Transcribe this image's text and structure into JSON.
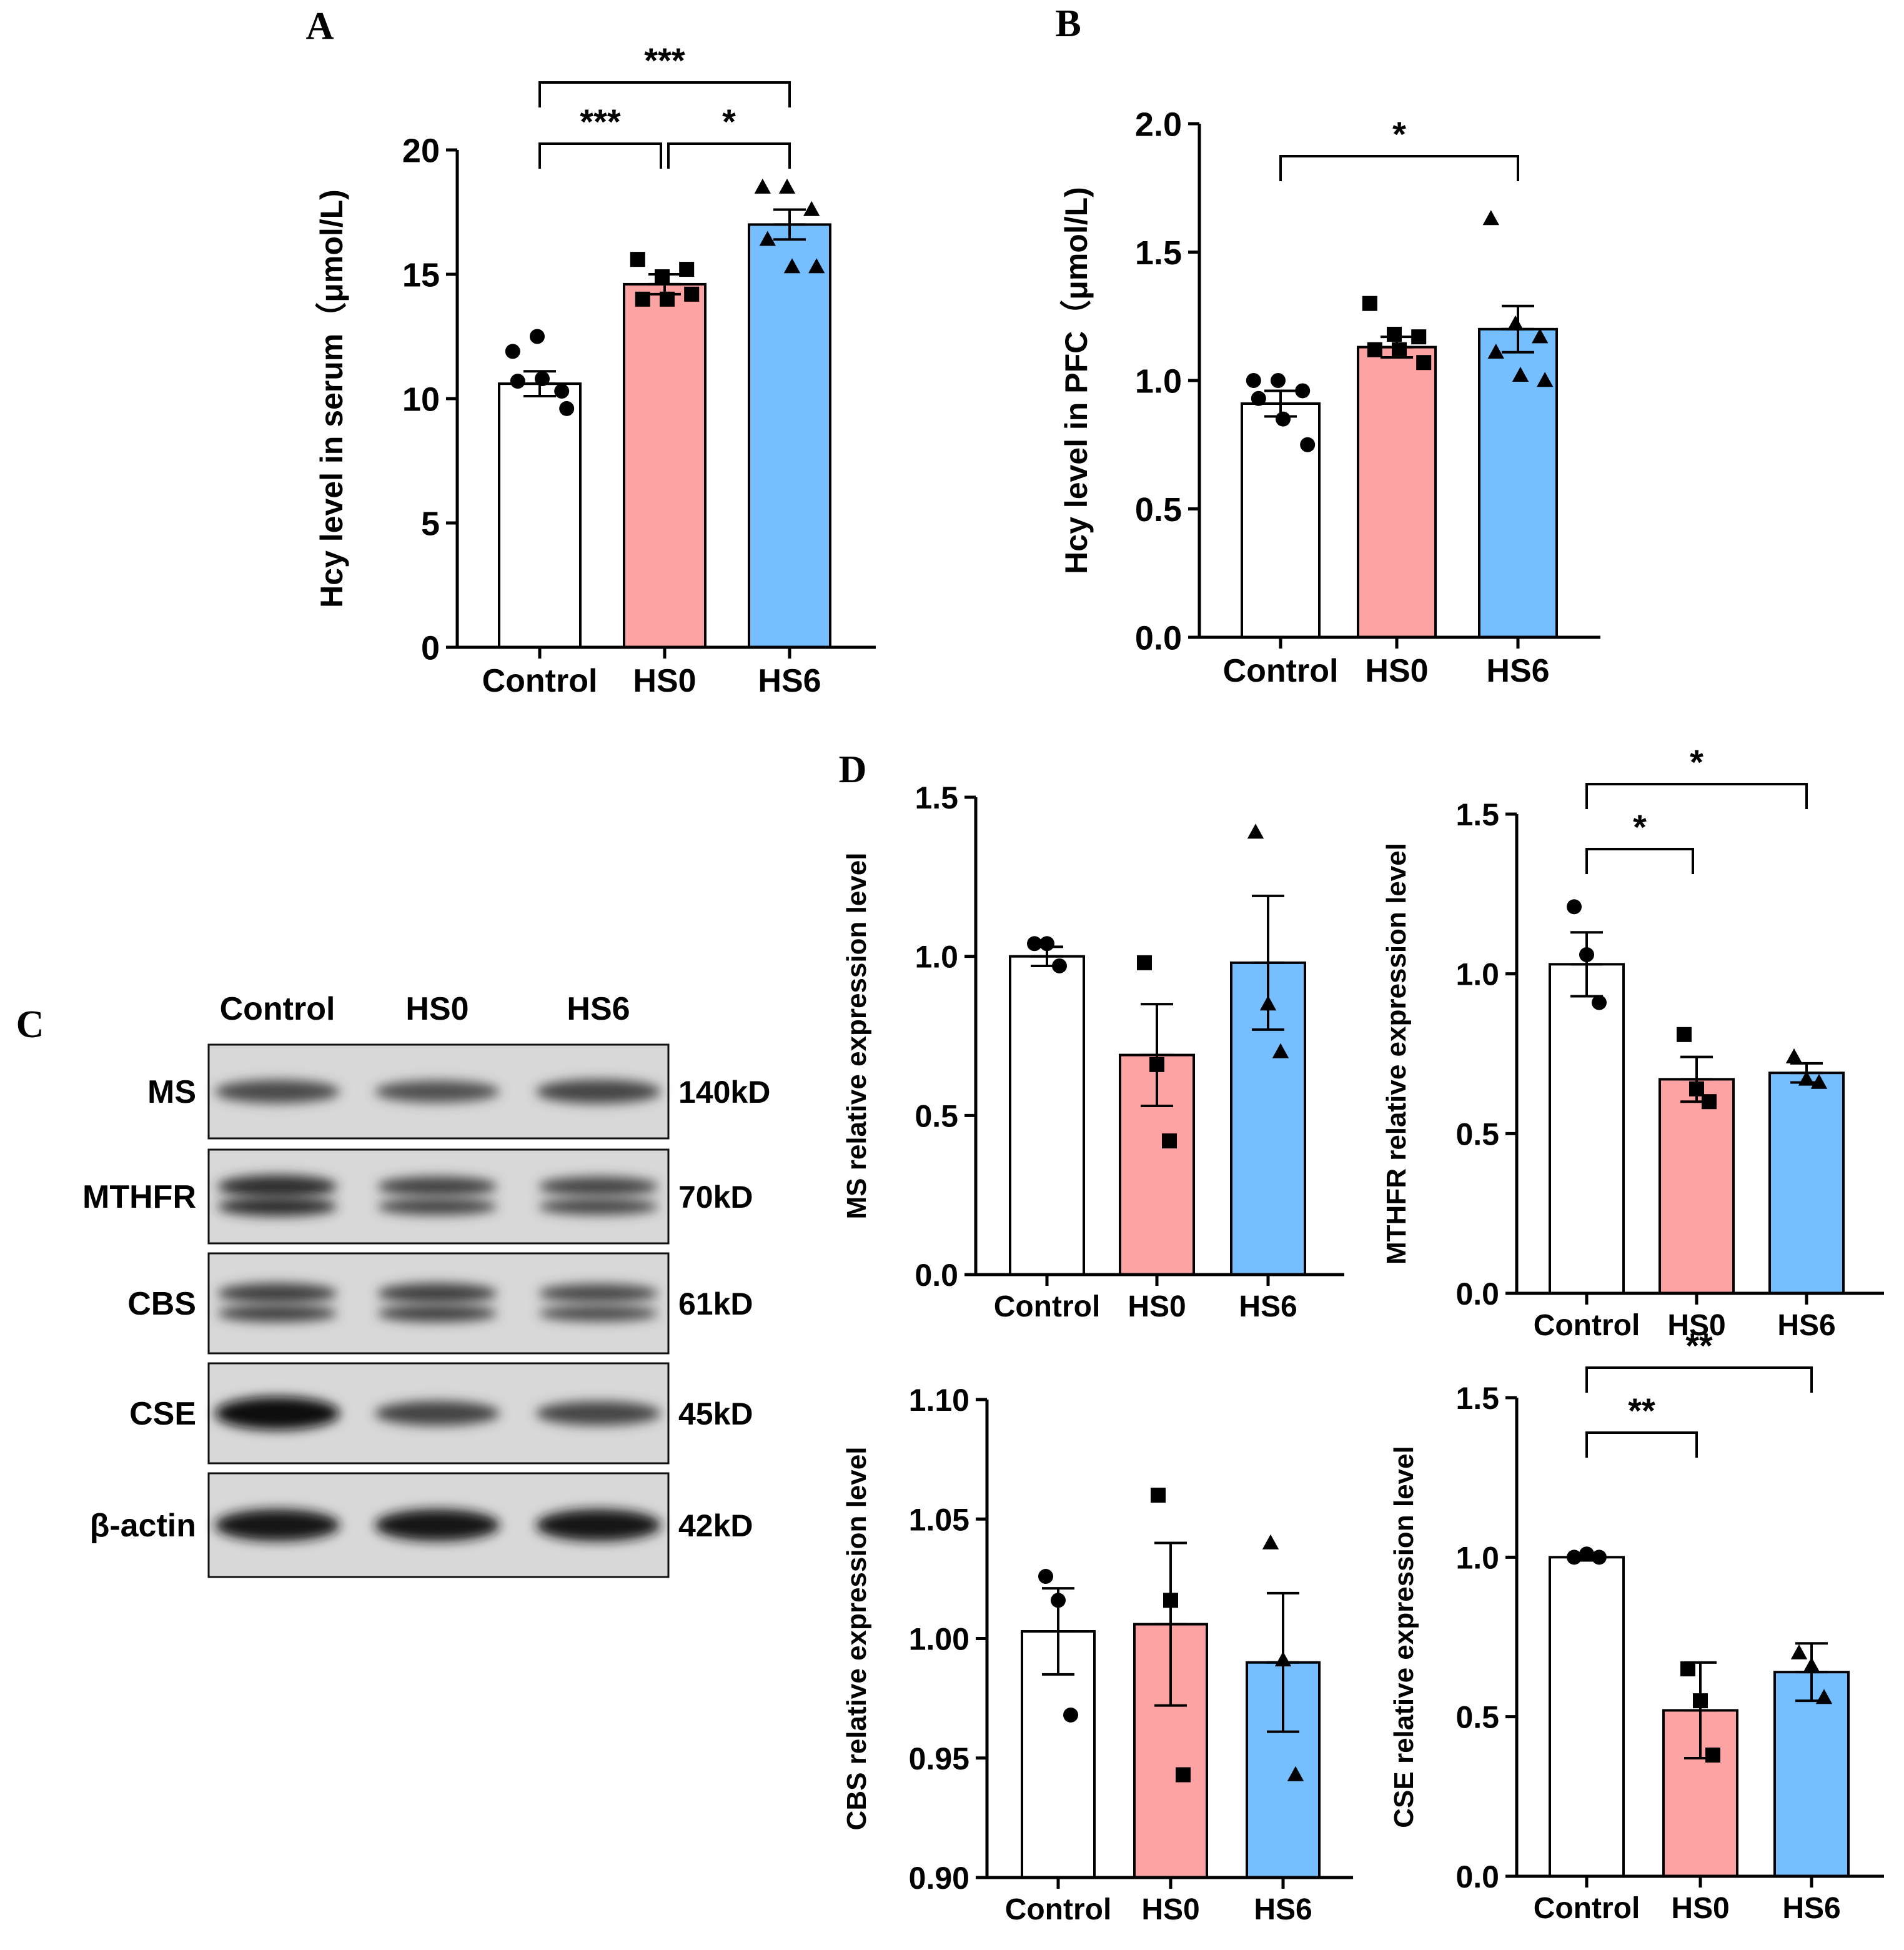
{
  "colors": {
    "control": "#ffffff",
    "hs0": "#fea3a3",
    "hs6": "#75beff",
    "ink": "#000000"
  },
  "panels": {
    "A": "A",
    "B": "B",
    "C": "C",
    "D": "D"
  },
  "blot": {
    "lanes": [
      "Control",
      "HS0",
      "HS6"
    ],
    "rows": [
      {
        "protein": "MS",
        "size": "140kD",
        "intensity": [
          0.55,
          0.5,
          0.58
        ],
        "double": false
      },
      {
        "protein": "MTHFR",
        "size": "70kD",
        "intensity": [
          0.75,
          0.6,
          0.58
        ],
        "double": true
      },
      {
        "protein": "CBS",
        "size": "61kD",
        "intensity": [
          0.62,
          0.62,
          0.55
        ],
        "double": true
      },
      {
        "protein": "CSE",
        "size": "45kD",
        "intensity": [
          0.95,
          0.6,
          0.58
        ],
        "double": false
      },
      {
        "protein": "β-actin",
        "size": "42kD",
        "intensity": [
          0.9,
          0.9,
          0.9
        ],
        "double": false
      }
    ]
  },
  "chart_data": [
    {
      "id": "A",
      "type": "bar",
      "categories": [
        "Control",
        "HS0",
        "HS6"
      ],
      "values": [
        10.6,
        14.6,
        17.0
      ],
      "errors": [
        0.5,
        0.4,
        0.6
      ],
      "points": [
        [
          11.9,
          12.5,
          10.3,
          10.7,
          10.8,
          9.6
        ],
        [
          15.6,
          14.9,
          15.2,
          14.0,
          14.0,
          14.2
        ],
        [
          18.5,
          18.5,
          17.6,
          16.4,
          15.3,
          15.3
        ]
      ],
      "ylabel": "Hcy level in serum（μmol/L)",
      "ylim": [
        0,
        20
      ],
      "yticks": [
        "0",
        "5",
        "10",
        "15",
        "20"
      ],
      "brackets": [
        {
          "from": 0,
          "to": 2,
          "label": "***",
          "level": 2
        },
        {
          "from": 0,
          "to": 1,
          "label": "***",
          "level": 1
        },
        {
          "from": 1,
          "to": 2,
          "label": "*",
          "level": 1
        }
      ]
    },
    {
      "id": "B",
      "type": "bar",
      "categories": [
        "Control",
        "HS0",
        "HS6"
      ],
      "values": [
        0.91,
        1.13,
        1.2
      ],
      "errors": [
        0.05,
        0.04,
        0.09
      ],
      "points": [
        [
          1.0,
          1.0,
          0.96,
          0.93,
          0.85,
          0.75
        ],
        [
          1.3,
          1.18,
          1.17,
          1.12,
          1.12,
          1.07
        ],
        [
          1.63,
          1.22,
          1.17,
          1.11,
          1.02,
          1.0
        ]
      ],
      "ylabel": "Hcy level in PFC（μmol/L)",
      "ylim": [
        0,
        2.0
      ],
      "yticks": [
        "0.0",
        "0.5",
        "1.0",
        "1.5",
        "2.0"
      ],
      "brackets": [
        {
          "from": 0,
          "to": 2,
          "label": "*",
          "level": 1
        }
      ]
    },
    {
      "id": "D-MS",
      "type": "bar",
      "categories": [
        "Control",
        "HS0",
        "HS6"
      ],
      "values": [
        1.0,
        0.69,
        0.98
      ],
      "errors": [
        0.03,
        0.16,
        0.21
      ],
      "points": [
        [
          1.04,
          1.04,
          0.97
        ],
        [
          0.98,
          0.66,
          0.42
        ],
        [
          1.39,
          0.85,
          0.7
        ]
      ],
      "ylabel": "MS relative expression level",
      "ylim": [
        0,
        1.5
      ],
      "yticks": [
        "0.0",
        "0.5",
        "1.0",
        "1.5"
      ],
      "brackets": []
    },
    {
      "id": "D-MTHFR",
      "type": "bar",
      "categories": [
        "Control",
        "HS0",
        "HS6"
      ],
      "values": [
        1.03,
        0.67,
        0.69
      ],
      "errors": [
        0.1,
        0.07,
        0.03
      ],
      "points": [
        [
          1.21,
          1.06,
          0.91
        ],
        [
          0.81,
          0.64,
          0.6
        ],
        [
          0.74,
          0.67,
          0.66
        ]
      ],
      "ylabel": "MTHFR relative expression level",
      "ylim": [
        0,
        1.5
      ],
      "yticks": [
        "0.0",
        "0.5",
        "1.0",
        "1.5"
      ],
      "brackets": [
        {
          "from": 0,
          "to": 2,
          "label": "*",
          "level": 2
        },
        {
          "from": 0,
          "to": 1,
          "label": "*",
          "level": 1
        }
      ]
    },
    {
      "id": "D-CBS",
      "type": "bar",
      "categories": [
        "Control",
        "HS0",
        "HS6"
      ],
      "values": [
        1.003,
        1.006,
        0.99
      ],
      "errors": [
        0.018,
        0.034,
        0.029
      ],
      "points": [
        [
          1.026,
          1.016,
          0.968
        ],
        [
          1.06,
          1.016,
          0.943
        ],
        [
          1.04,
          0.991,
          0.943
        ]
      ],
      "ylabel": "CBS relative expression level",
      "ylim": [
        0.9,
        1.1
      ],
      "yticks": [
        "0.90",
        "0.95",
        "1.00",
        "1.05",
        "1.10"
      ],
      "brackets": []
    },
    {
      "id": "D-CSE",
      "type": "bar",
      "categories": [
        "Control",
        "HS0",
        "HS6"
      ],
      "values": [
        1.0,
        0.52,
        0.64
      ],
      "errors": [
        0.01,
        0.15,
        0.09
      ],
      "points": [
        [
          1.0,
          1.01,
          1.0
        ],
        [
          0.65,
          0.55,
          0.38
        ],
        [
          0.7,
          0.66,
          0.56
        ]
      ],
      "ylabel": "CSE relative expression level",
      "ylim": [
        0,
        1.5
      ],
      "yticks": [
        "0.0",
        "0.5",
        "1.0",
        "1.5"
      ],
      "brackets": [
        {
          "from": 0,
          "to": 2,
          "label": "**",
          "level": 2
        },
        {
          "from": 0,
          "to": 1,
          "label": "**",
          "level": 1
        }
      ]
    }
  ]
}
